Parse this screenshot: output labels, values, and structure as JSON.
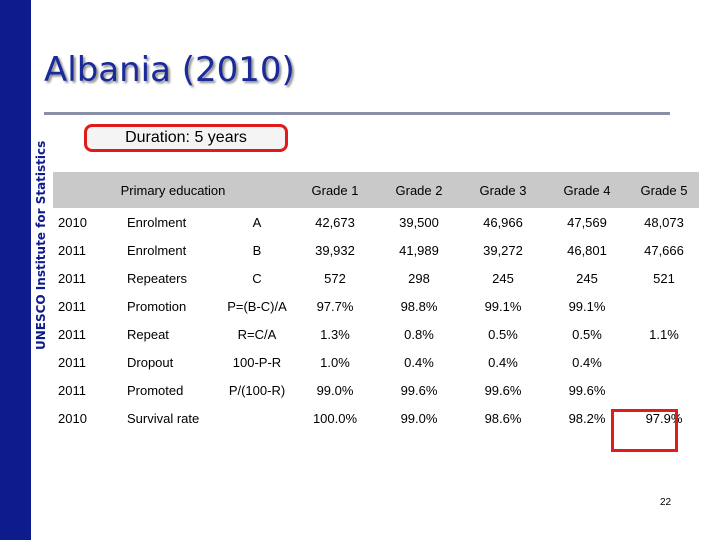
{
  "sidebar_text": "UNESCO Institute for Statistics",
  "title": "Albania (2010)",
  "duration": "Duration: 5 years",
  "header": {
    "section": "Primary education",
    "grades": [
      "Grade 1",
      "Grade 2",
      "Grade 3",
      "Grade 4",
      "Grade 5"
    ]
  },
  "rows": [
    {
      "year": "2010",
      "measure": "Enrolment",
      "formula": "A",
      "values": [
        "42,673",
        "39,500",
        "46,966",
        "47,569",
        "48,073"
      ]
    },
    {
      "year": "2011",
      "measure": "Enrolment",
      "formula": "B",
      "values": [
        "39,932",
        "41,989",
        "39,272",
        "46,801",
        "47,666"
      ]
    },
    {
      "year": "2011",
      "measure": "Repeaters",
      "formula": "C",
      "values": [
        "572",
        "298",
        "245",
        "245",
        "521"
      ]
    },
    {
      "year": "2011",
      "measure": "Promotion",
      "formula": "P=(B-C)/A",
      "values": [
        "97.7%",
        "98.8%",
        "99.1%",
        "99.1%",
        ""
      ]
    },
    {
      "year": "2011",
      "measure": "Repeat",
      "formula": "R=C/A",
      "values": [
        "1.3%",
        "0.8%",
        "0.5%",
        "0.5%",
        "1.1%"
      ]
    },
    {
      "year": "2011",
      "measure": "Dropout",
      "formula": "100-P-R",
      "values": [
        "1.0%",
        "0.4%",
        "0.4%",
        "0.4%",
        ""
      ]
    },
    {
      "year": "2011",
      "measure": "Promoted",
      "formula": "P/(100-R)",
      "values": [
        "99.0%",
        "99.6%",
        "99.6%",
        "99.6%",
        ""
      ]
    },
    {
      "year": "2010",
      "measure": "Survival rate",
      "formula": "",
      "values": [
        "100.0%",
        "99.0%",
        "98.6%",
        "98.2%",
        "97.9%"
      ]
    }
  ],
  "page_number": "22",
  "colors": {
    "sidebar": "#0d1b8c",
    "title": "#1a2a9b",
    "highlight": "#e11b1b",
    "header_fill": "#c9c9c9"
  }
}
